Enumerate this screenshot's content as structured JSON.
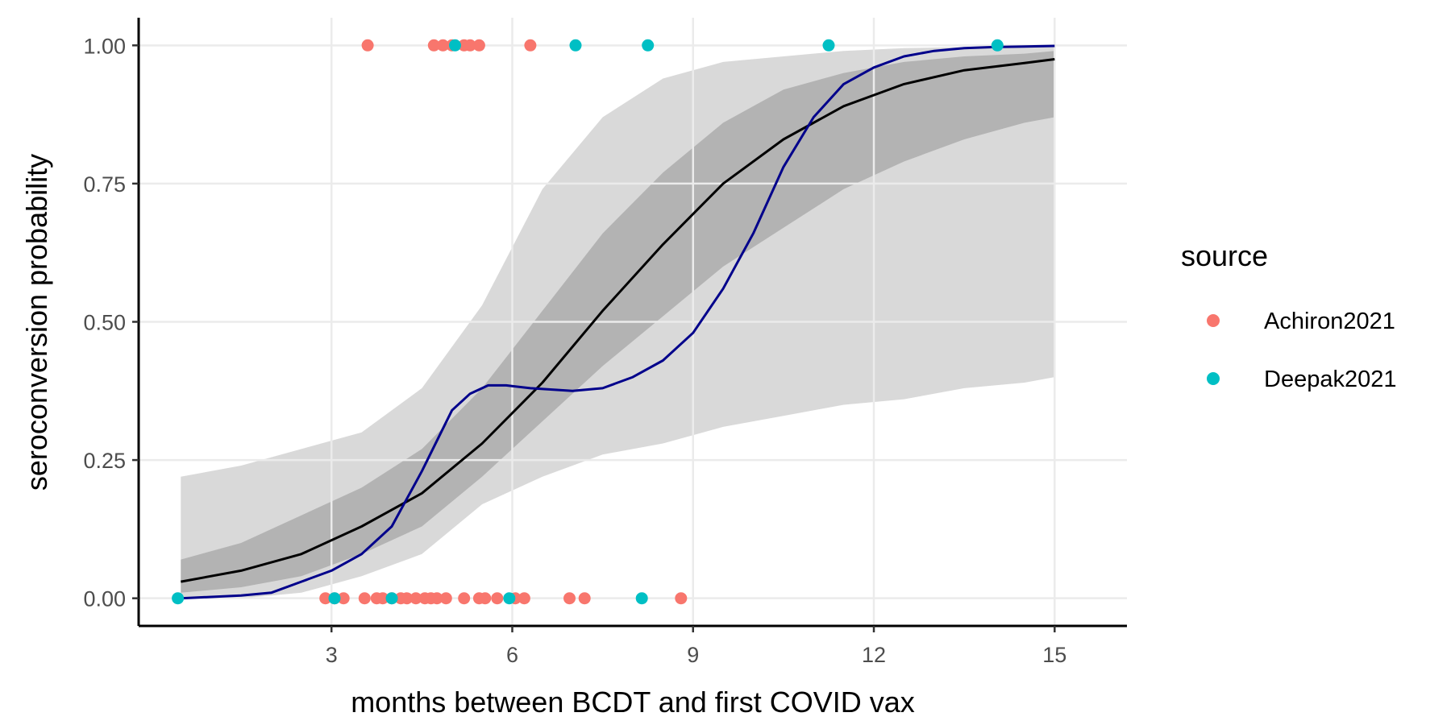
{
  "chart_data": {
    "type": "scatter",
    "title": "",
    "xlabel": "months between BCDT and first COVID vax",
    "ylabel": "seroconversion probability",
    "xlim": [
      -0.2,
      16.2
    ],
    "ylim": [
      -0.05,
      1.05
    ],
    "x_ticks": [
      3,
      6,
      9,
      12,
      15
    ],
    "x_tick_labels": [
      "3",
      "6",
      "9",
      "12",
      "15"
    ],
    "y_ticks": [
      0,
      0.25,
      0.5,
      0.75,
      1.0
    ],
    "y_tick_labels": [
      "0.00",
      "0.25",
      "0.50",
      "0.75",
      "1.00"
    ],
    "grid": true,
    "legend": {
      "title": "source",
      "placement": "right",
      "entries": [
        {
          "label": "Achiron2021",
          "color": "#F8766D"
        },
        {
          "label": "Deepak2021",
          "color": "#00BFC4"
        }
      ]
    },
    "series": [
      {
        "name": "Achiron2021",
        "color": "#F8766D",
        "points": [
          [
            3.6,
            1
          ],
          [
            4.7,
            1
          ],
          [
            4.85,
            1
          ],
          [
            5.0,
            1
          ],
          [
            5.2,
            1
          ],
          [
            5.3,
            1
          ],
          [
            5.45,
            1
          ],
          [
            6.3,
            1
          ],
          [
            2.9,
            0
          ],
          [
            3.05,
            0
          ],
          [
            3.2,
            0
          ],
          [
            3.55,
            0
          ],
          [
            3.75,
            0
          ],
          [
            3.85,
            0
          ],
          [
            4.0,
            0
          ],
          [
            4.15,
            0
          ],
          [
            4.25,
            0
          ],
          [
            4.4,
            0
          ],
          [
            4.55,
            0
          ],
          [
            4.65,
            0
          ],
          [
            4.75,
            0
          ],
          [
            4.9,
            0
          ],
          [
            5.2,
            0
          ],
          [
            5.45,
            0
          ],
          [
            5.55,
            0
          ],
          [
            5.75,
            0
          ],
          [
            6.05,
            0
          ],
          [
            6.2,
            0
          ],
          [
            6.95,
            0
          ],
          [
            7.2,
            0
          ],
          [
            8.8,
            0
          ]
        ]
      },
      {
        "name": "Deepak2021",
        "color": "#00BFC4",
        "points": [
          [
            5.05,
            1
          ],
          [
            7.05,
            1
          ],
          [
            8.25,
            1
          ],
          [
            11.25,
            1
          ],
          [
            14.05,
            1
          ],
          [
            0.45,
            0
          ],
          [
            3.05,
            0
          ],
          [
            4.0,
            0
          ],
          [
            5.95,
            0
          ],
          [
            8.15,
            0
          ]
        ]
      }
    ],
    "fit_black": {
      "color": "#000000",
      "x": [
        0.5,
        1.5,
        2.5,
        3.5,
        4.5,
        5.5,
        6.5,
        7.5,
        8.5,
        9.5,
        10.5,
        11.5,
        12.5,
        13.5,
        14.5,
        15
      ],
      "y": [
        0.03,
        0.05,
        0.08,
        0.13,
        0.19,
        0.28,
        0.39,
        0.52,
        0.64,
        0.75,
        0.83,
        0.89,
        0.93,
        0.955,
        0.968,
        0.975
      ]
    },
    "fit_navy": {
      "color": "#00008B",
      "x": [
        0.5,
        1.5,
        2.0,
        2.5,
        3.0,
        3.5,
        4.0,
        4.5,
        5.0,
        5.3,
        5.6,
        5.9,
        6.3,
        7.0,
        7.5,
        8.0,
        8.5,
        9.0,
        9.5,
        10.0,
        10.5,
        11.0,
        11.5,
        12.0,
        12.5,
        13.0,
        13.5,
        14.0,
        14.5,
        15.0
      ],
      "y": [
        0.0,
        0.005,
        0.01,
        0.03,
        0.05,
        0.08,
        0.13,
        0.23,
        0.34,
        0.37,
        0.385,
        0.385,
        0.38,
        0.375,
        0.38,
        0.4,
        0.43,
        0.48,
        0.56,
        0.66,
        0.78,
        0.87,
        0.93,
        0.96,
        0.98,
        0.99,
        0.995,
        0.997,
        0.998,
        0.999
      ]
    },
    "band_inner": {
      "color": "#b3b3b3",
      "x": [
        0.5,
        1.5,
        2.5,
        3.5,
        4.5,
        5.5,
        6.5,
        7.5,
        8.5,
        9.5,
        10.5,
        11.5,
        12.5,
        13.5,
        14.5,
        15
      ],
      "lower": [
        0.01,
        0.02,
        0.04,
        0.08,
        0.13,
        0.22,
        0.32,
        0.42,
        0.51,
        0.6,
        0.67,
        0.74,
        0.79,
        0.83,
        0.86,
        0.87
      ],
      "upper": [
        0.07,
        0.1,
        0.15,
        0.2,
        0.27,
        0.38,
        0.52,
        0.66,
        0.77,
        0.86,
        0.92,
        0.95,
        0.97,
        0.98,
        0.985,
        0.99
      ]
    },
    "band_outer": {
      "color": "#d9d9d9",
      "x": [
        0.5,
        1.5,
        2.5,
        3.5,
        4.5,
        5.5,
        6.5,
        7.5,
        8.5,
        9.5,
        10.5,
        11.5,
        12.5,
        13.5,
        14.5,
        15
      ],
      "lower": [
        0.0,
        0.0,
        0.01,
        0.04,
        0.08,
        0.17,
        0.22,
        0.26,
        0.28,
        0.31,
        0.33,
        0.35,
        0.36,
        0.38,
        0.39,
        0.4
      ],
      "upper": [
        0.22,
        0.24,
        0.27,
        0.3,
        0.38,
        0.53,
        0.74,
        0.87,
        0.94,
        0.97,
        0.98,
        0.99,
        0.995,
        0.997,
        0.998,
        0.999
      ]
    }
  }
}
